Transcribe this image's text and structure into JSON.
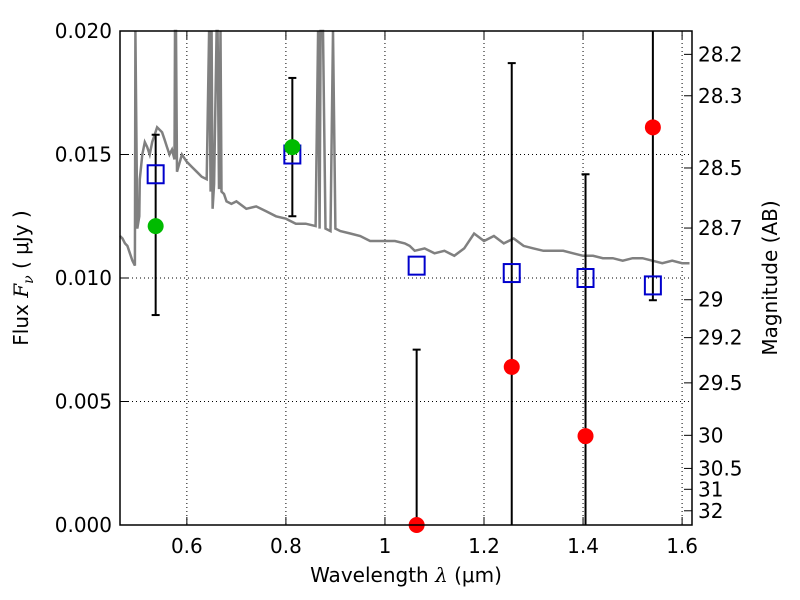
{
  "chart_data": {
    "type": "scatter",
    "title": "",
    "xlabel_text": "Wavelength",
    "xlabel_symbol": "λ",
    "xlabel_unit": "(μm)",
    "ylabel_text": "Flux",
    "ylabel_symbol": "F",
    "ylabel_sub": "ν",
    "ylabel_unit": "( μJy )",
    "y2label": "Magnitude (AB)",
    "xlim": [
      0.465,
      1.62
    ],
    "ylim": [
      0.0,
      0.02
    ],
    "grid": true,
    "x_ticks": [
      0.6,
      0.8,
      1.0,
      1.2,
      1.4,
      1.6
    ],
    "x_tick_labels": [
      "0.6",
      "0.8",
      "1",
      "1.2",
      "1.4",
      "1.6"
    ],
    "y_ticks": [
      0.0,
      0.005,
      0.01,
      0.015,
      0.02
    ],
    "y_tick_labels": [
      "0.000",
      "0.005",
      "0.010",
      "0.015",
      "0.020"
    ],
    "mag_ticks": [
      28.2,
      28.3,
      28.5,
      28.7,
      29,
      29.2,
      29.5,
      30,
      30.5,
      31,
      32
    ],
    "mag_tick_labels": [
      "28.2",
      "28.3",
      "28.5",
      "28.7",
      "29",
      "29.2",
      "29.5",
      "30",
      "30.5",
      "31",
      "32"
    ],
    "colors": {
      "model": "#808080",
      "observed_optical": "#00bb00",
      "observed_nir": "#ff0000",
      "model_photometry": "#0000cc",
      "errorbar": "#000000"
    },
    "series": [
      {
        "name": "model_spectrum",
        "kind": "line",
        "x": [
          0.465,
          0.47,
          0.475,
          0.48,
          0.485,
          0.49,
          0.495,
          0.496,
          0.5,
          0.504,
          0.505,
          0.51,
          0.515,
          0.52,
          0.525,
          0.53,
          0.535,
          0.54,
          0.545,
          0.55,
          0.555,
          0.56,
          0.565,
          0.57,
          0.575,
          0.576,
          0.578,
          0.58,
          0.59,
          0.6,
          0.61,
          0.62,
          0.63,
          0.64,
          0.645,
          0.648,
          0.65,
          0.652,
          0.655,
          0.66,
          0.662,
          0.665,
          0.668,
          0.67,
          0.675,
          0.68,
          0.69,
          0.7,
          0.72,
          0.74,
          0.76,
          0.78,
          0.8,
          0.82,
          0.84,
          0.86,
          0.865,
          0.868,
          0.87,
          0.875,
          0.88,
          0.89,
          0.895,
          0.9,
          0.91,
          0.93,
          0.95,
          0.97,
          1.0,
          1.02,
          1.04,
          1.05,
          1.06,
          1.08,
          1.1,
          1.12,
          1.14,
          1.16,
          1.18,
          1.2,
          1.22,
          1.24,
          1.26,
          1.28,
          1.3,
          1.32,
          1.34,
          1.36,
          1.38,
          1.4,
          1.42,
          1.44,
          1.46,
          1.48,
          1.5,
          1.52,
          1.54,
          1.56,
          1.58,
          1.6,
          1.615
        ],
        "y": [
          0.0117,
          0.0116,
          0.0114,
          0.0113,
          0.011,
          0.0107,
          0.0105,
          0.02,
          0.012,
          0.0125,
          0.014,
          0.015,
          0.0155,
          0.0153,
          0.015,
          0.0155,
          0.0158,
          0.0161,
          0.016,
          0.0159,
          0.0156,
          0.0153,
          0.015,
          0.0152,
          0.0148,
          0.02,
          0.02,
          0.0143,
          0.015,
          0.0147,
          0.0145,
          0.0143,
          0.0141,
          0.014,
          0.02,
          0.0135,
          0.02,
          0.0128,
          0.0138,
          0.02,
          0.02,
          0.0136,
          0.02,
          0.0135,
          0.0134,
          0.0131,
          0.013,
          0.0131,
          0.0128,
          0.0129,
          0.0127,
          0.0125,
          0.0124,
          0.0122,
          0.0122,
          0.0121,
          0.02,
          0.012,
          0.02,
          0.02,
          0.012,
          0.0119,
          0.02,
          0.012,
          0.0119,
          0.0118,
          0.0117,
          0.0115,
          0.0115,
          0.0115,
          0.0114,
          0.0113,
          0.0111,
          0.0112,
          0.011,
          0.0111,
          0.0109,
          0.0112,
          0.0118,
          0.0115,
          0.0117,
          0.0114,
          0.0116,
          0.0113,
          0.0112,
          0.0111,
          0.0111,
          0.0111,
          0.011,
          0.0109,
          0.0109,
          0.0108,
          0.0108,
          0.0107,
          0.0108,
          0.0108,
          0.0107,
          0.0106,
          0.0107,
          0.0106,
          0.0106
        ]
      },
      {
        "name": "model_photometry",
        "kind": "open-square",
        "x": [
          0.537,
          0.813,
          1.064,
          1.256,
          1.405,
          1.541
        ],
        "y": [
          0.0142,
          0.015,
          0.0105,
          0.0102,
          0.01,
          0.0097
        ]
      },
      {
        "name": "observed_optical",
        "kind": "filled-circle",
        "x": [
          0.537,
          0.813
        ],
        "y": [
          0.0121,
          0.0153
        ]
      },
      {
        "name": "observed_nir",
        "kind": "filled-circle",
        "x": [
          1.064,
          1.256,
          1.405,
          1.541
        ],
        "y": [
          0.0,
          0.0064,
          0.0036,
          0.0161
        ]
      },
      {
        "name": "error_bars",
        "kind": "errorbar",
        "x": [
          0.537,
          0.813,
          1.064,
          1.256,
          1.405,
          1.541
        ],
        "ylow": [
          0.0085,
          0.0125,
          0.0,
          0.0,
          0.0,
          0.0091
        ],
        "yhigh": [
          0.0158,
          0.0181,
          0.0071,
          0.0187,
          0.0142,
          0.0205
        ]
      }
    ]
  }
}
